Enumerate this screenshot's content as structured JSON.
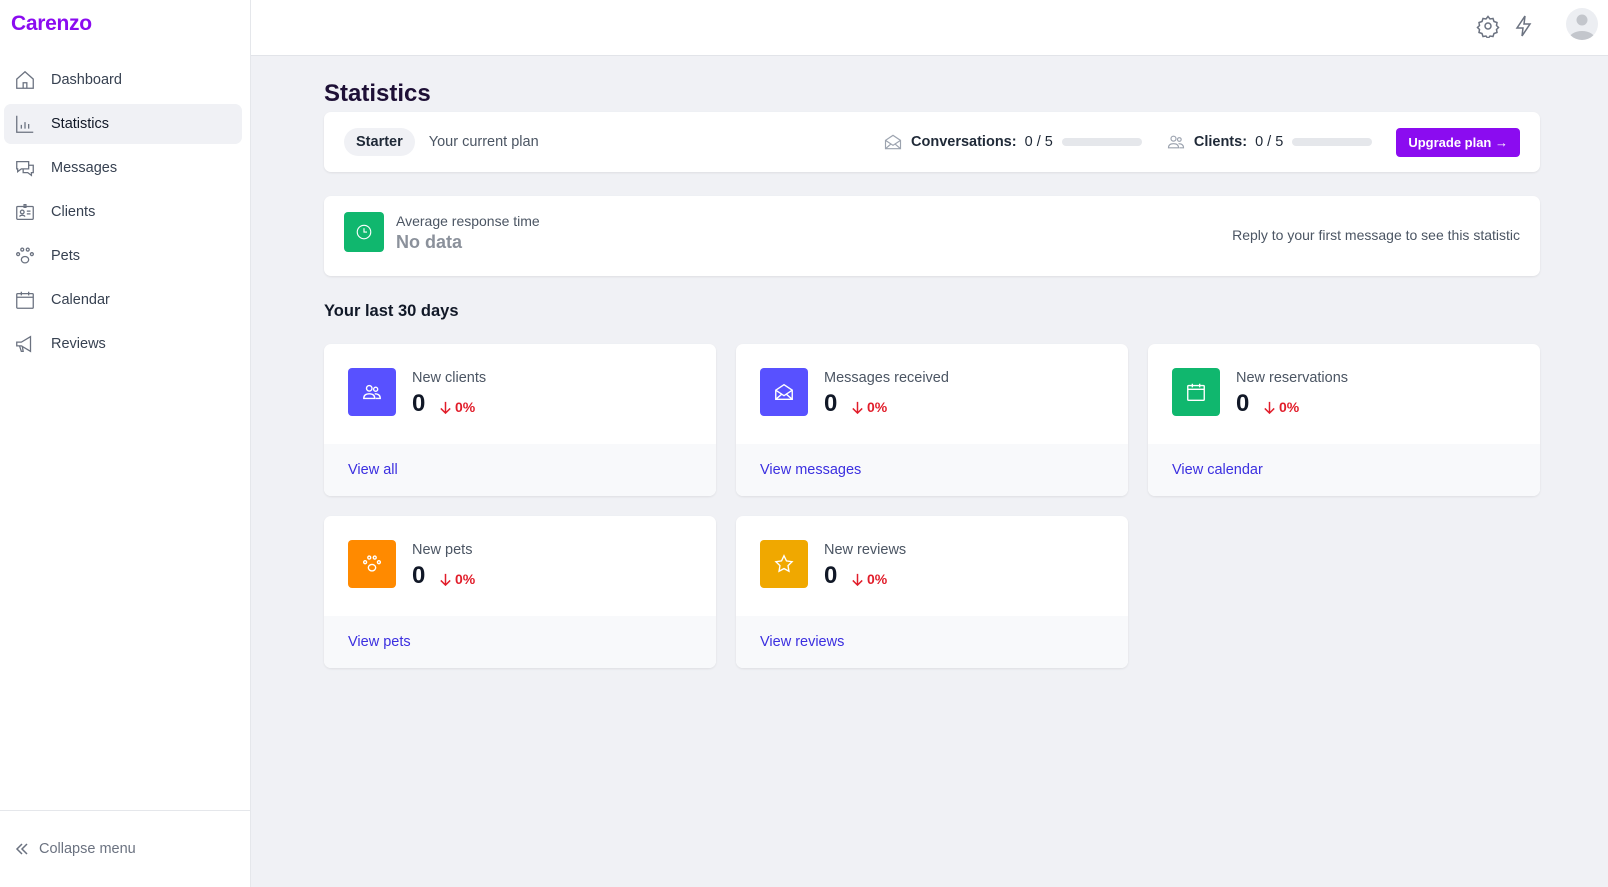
{
  "app": {
    "logo": "Carenzo"
  },
  "sidebar": {
    "items": [
      {
        "label": "Dashboard",
        "icon": "home-icon"
      },
      {
        "label": "Statistics",
        "icon": "bar-chart-icon",
        "active": true
      },
      {
        "label": "Messages",
        "icon": "chat-icon"
      },
      {
        "label": "Clients",
        "icon": "id-card-icon"
      },
      {
        "label": "Pets",
        "icon": "paw-icon"
      },
      {
        "label": "Calendar",
        "icon": "calendar-icon"
      },
      {
        "label": "Reviews",
        "icon": "megaphone-icon"
      }
    ],
    "collapse_label": "Collapse menu"
  },
  "page": {
    "title": "Statistics"
  },
  "plan": {
    "name": "Starter",
    "caption": "Your current plan",
    "conversations_label": "Conversations:",
    "conversations_value": "0 / 5",
    "conversations_fraction": 0,
    "clients_label": "Clients:",
    "clients_value": "0 / 5",
    "clients_fraction": 0,
    "upgrade_label": "Upgrade plan →"
  },
  "avg": {
    "label": "Average response time",
    "value": "No data",
    "hint": "Reply to your first message to see this statistic",
    "color": "#10b76e"
  },
  "section_title": "Your last 30 days",
  "stats": [
    {
      "label": "New clients",
      "value": "0",
      "change": "0%",
      "link": "View all",
      "color": "#5851ff",
      "icon": "users-icon"
    },
    {
      "label": "Messages received",
      "value": "0",
      "change": "0%",
      "link": "View messages",
      "color": "#5851ff",
      "icon": "envelope-open-icon"
    },
    {
      "label": "New reservations",
      "value": "0",
      "change": "0%",
      "link": "View calendar",
      "color": "#10b76e",
      "icon": "calendar-icon"
    },
    {
      "label": "New pets",
      "value": "0",
      "change": "0%",
      "link": "View pets",
      "color": "#ff8a00",
      "icon": "paw-icon"
    },
    {
      "label": "New reviews",
      "value": "0",
      "change": "0%",
      "link": "View reviews",
      "color": "#f0a800",
      "icon": "star-icon"
    }
  ]
}
